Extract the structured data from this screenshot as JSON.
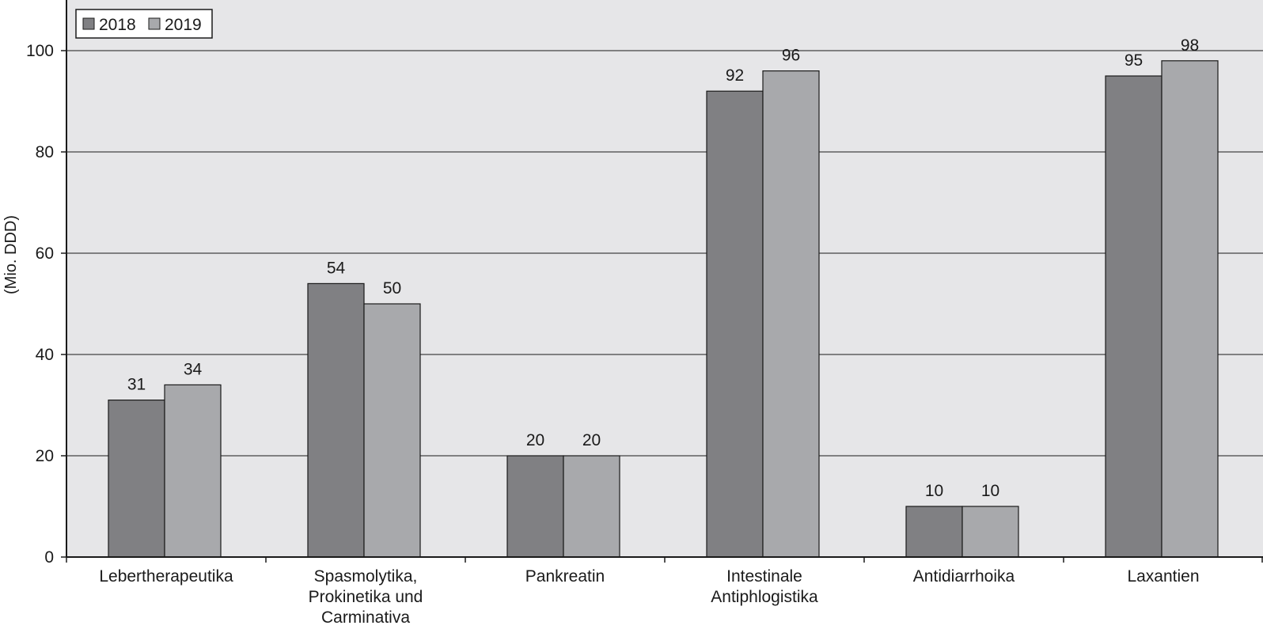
{
  "chart_data": {
    "type": "bar",
    "ylabel": "(Mio. DDD)",
    "xlabel": "",
    "ylim": [
      0,
      100
    ],
    "yticks": [
      0,
      20,
      40,
      60,
      80,
      100
    ],
    "grid": true,
    "legend_position": "top-left",
    "categories": [
      [
        "Lebertherapeutika"
      ],
      [
        "Spasmolytika,",
        "Prokinetika und",
        "Carminativa"
      ],
      [
        "Pankreatin"
      ],
      [
        "Intestinale",
        "Antiphlogistika"
      ],
      [
        "Antidiarrhoika"
      ],
      [
        "Laxantien"
      ]
    ],
    "series": [
      {
        "name": "2018",
        "color": "#808083",
        "values": [
          31,
          54,
          20,
          92,
          10,
          95
        ],
        "labels": [
          "31",
          "54",
          "20",
          "92",
          "10",
          "95"
        ]
      },
      {
        "name": "2019",
        "color": "#a8a9ac",
        "values": [
          34,
          50,
          20,
          96,
          10,
          98
        ],
        "labels": [
          "34",
          "50",
          "20",
          "96",
          "10",
          "98"
        ]
      }
    ],
    "colors": {
      "plot_background": "#e6e6e8",
      "gridline": "#1a1a1a",
      "axis": "#1a1a1a"
    }
  }
}
